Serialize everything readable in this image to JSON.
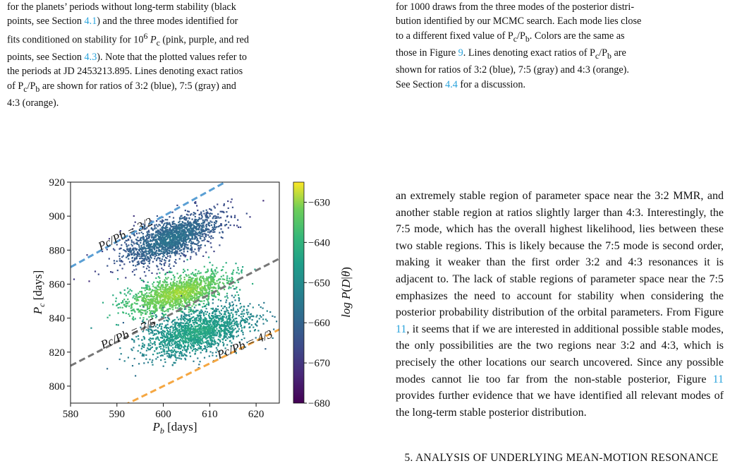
{
  "left_caption": {
    "l1": "for the planets’ periods without long-term stability (black",
    "l2a": "points, see Section ",
    "l2ref": "4.1",
    "l2b": ") and the three modes identified for",
    "l3a": "fits conditioned on stability for 10",
    "l3sup": "6",
    "l3b": " P",
    "l3sub": "c",
    "l3c": " (pink, purple, and red",
    "l4a": "points, see Section ",
    "l4ref": "4.3",
    "l4b": "). Note that the plotted values refer to",
    "l5": "the periods at JD 2453213.895. Lines denoting exact ratios",
    "l6a": "of P",
    "l6s1": "c",
    "l6b": "/P",
    "l6s2": "b",
    "l6c": " are shown for ratios of 3:2 (blue), 7:5 (gray) and",
    "l7": "4:3 (orange)."
  },
  "right_caption": {
    "l1": "for 1000 draws from the three modes of the posterior distri-",
    "l2": "bution identified by our MCMC search. Each mode lies close",
    "l3a": "to a different fixed value of P",
    "l3s1": "c",
    "l3b": "/P",
    "l3s2": "b",
    "l3c": ". Colors are the same as",
    "l4a": "those in Figure ",
    "l4ref": "9",
    "l4b": ". Lines denoting exact ratios of P",
    "l4s1": "c",
    "l4c": "/P",
    "l4s2": "b",
    "l4d": " are",
    "l5": "shown for ratios of 3:2 (blue), 7:5 (gray) and 4:3 (orange).",
    "l6a": "See Section ",
    "l6ref": "4.4",
    "l6b": " for a discussion."
  },
  "body_text": {
    "p1a": "an extremely stable region of parameter space near the 3:2 MMR, and another stable region at ratios slightly larger than 4:3. Interestingly, the 7:5 mode, which has the overall highest likelihood, lies between these two stable regions. This is likely because the 7:5 mode is second order, making it weaker than the first order 3:2 and 4:3 resonances it is adjacent to. The lack of stable regions of parameter space near the 7:5 emphasizes the need to account for stability when considering the posterior probability distribution of the orbital parameters. From Figure ",
    "p1ref1": "11",
    "p1b": ", it seems that if we are interested in additional possible stable modes, the only possibilities are the two regions near 3:2 and 4:3, which is precisely the other locations our search uncovered. Since any possible modes cannot lie too far from the non-stable posterior, Figure ",
    "p1ref2": "11",
    "p1c": " provides further evidence that we have identified all relevant modes of the long-term stable posterior distribution."
  },
  "section_heading": "5. ANALYSIS OF UNDERLYING MEAN-MOTION RESONANCE",
  "colors": {
    "ref_link": "#2aa3dc",
    "line_3_2": "#5a9fd4",
    "line_7_5": "#777777",
    "line_4_3": "#f5a742"
  },
  "chart_data": {
    "type": "scatter",
    "xlabel": "P_b [days]",
    "ylabel": "P_c [days]",
    "xlim": [
      580,
      625
    ],
    "ylim": [
      790,
      920
    ],
    "xticks": [
      "580",
      "590",
      "600",
      "610",
      "620"
    ],
    "yticks": [
      "800",
      "820",
      "840",
      "860",
      "880",
      "900",
      "920"
    ],
    "colorbar": {
      "label": "log P(D|θ)",
      "range": [
        -680,
        -625
      ],
      "ticks": [
        "−630",
        "−640",
        "−650",
        "−660",
        "−670",
        "−680"
      ],
      "colormap": "viridis"
    },
    "lines": [
      {
        "label": "P_c/P_b = 3/2",
        "ratio": 1.5,
        "color": "blue"
      },
      {
        "label": "P_c/P_b = 7/5",
        "ratio": 1.4,
        "color": "gray"
      },
      {
        "label": "P_c/P_b = 4/3",
        "ratio": 1.3333,
        "color": "orange"
      }
    ],
    "clusters": [
      {
        "mode": "3:2",
        "center": [
          601.5,
          887
        ],
        "logP": -658
      },
      {
        "mode": "7:5",
        "center": [
          603,
          855
        ],
        "logP": -632
      },
      {
        "mode": "4:3",
        "center": [
          607,
          832
        ],
        "logP": -646
      }
    ]
  }
}
